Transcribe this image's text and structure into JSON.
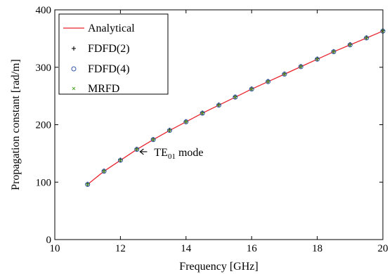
{
  "chart_data": {
    "type": "line",
    "title": "",
    "xlabel": "Frequency [GHz]",
    "ylabel": "Propagation constant [rad/m]",
    "xlim": [
      10,
      20
    ],
    "ylim": [
      0,
      400
    ],
    "xticks": [
      10,
      12,
      14,
      16,
      18,
      20
    ],
    "yticks": [
      0,
      100,
      200,
      300,
      400
    ],
    "grid": false,
    "legend_position": "top-left",
    "series": [
      {
        "name": "Analytical",
        "marker": "line",
        "color": "#e8242e",
        "x": [
          11,
          11.5,
          12,
          12.5,
          13,
          13.5,
          14,
          14.5,
          15,
          15.5,
          16,
          16.5,
          17,
          17.5,
          18,
          18.5,
          19,
          19.5,
          20
        ],
        "y": [
          96,
          119,
          138,
          157,
          174,
          190,
          205,
          220,
          234,
          248,
          262,
          275,
          288,
          301,
          314,
          327,
          339,
          351,
          363
        ]
      },
      {
        "name": "FDFD(2)",
        "marker": "plus",
        "color": "#000000",
        "x": [
          11,
          11.5,
          12,
          12.5,
          13,
          13.5,
          14,
          14.5,
          15,
          15.5,
          16,
          16.5,
          17,
          17.5,
          18,
          18.5,
          19,
          19.5,
          20
        ],
        "y": [
          97,
          120,
          139,
          158,
          175,
          191,
          206,
          221,
          235,
          249,
          263,
          276,
          289,
          302,
          315,
          328,
          340,
          352,
          364
        ]
      },
      {
        "name": "FDFD(4)",
        "marker": "circle",
        "color": "#3355aa",
        "x": [
          11,
          11.5,
          12,
          12.5,
          13,
          13.5,
          14,
          14.5,
          15,
          15.5,
          16,
          16.5,
          17,
          17.5,
          18,
          18.5,
          19,
          19.5,
          20
        ],
        "y": [
          96,
          119,
          138,
          157,
          174,
          190,
          205,
          220,
          234,
          248,
          262,
          275,
          288,
          301,
          314,
          327,
          339,
          351,
          363
        ]
      },
      {
        "name": "MRFD",
        "marker": "x",
        "color": "#55aa33",
        "x": [
          11,
          11.5,
          12,
          12.5,
          13,
          13.5,
          14,
          14.5,
          15,
          15.5,
          16,
          16.5,
          17,
          17.5,
          18,
          18.5,
          19,
          19.5,
          20
        ],
        "y": [
          96,
          119,
          138,
          157,
          174,
          190,
          205,
          220,
          234,
          248,
          262,
          275,
          288,
          301,
          314,
          327,
          339,
          351,
          363
        ]
      }
    ],
    "annotations": [
      {
        "text": "TE",
        "sub": "01",
        "tail": " mode",
        "x": 12.6,
        "y": 153
      }
    ]
  }
}
